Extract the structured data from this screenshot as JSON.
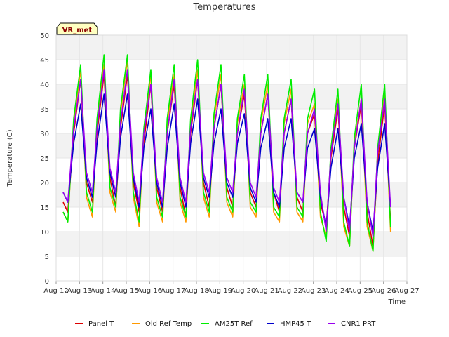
{
  "chart_data": {
    "type": "line",
    "title": "Temperatures",
    "xlabel": "Time",
    "ylabel": "Temperature (C)",
    "site_label": "VR_met",
    "xlim": [
      12,
      27
    ],
    "ylim": [
      0,
      50
    ],
    "yticks": [
      0,
      5,
      10,
      15,
      20,
      25,
      30,
      35,
      40,
      45,
      50
    ],
    "x_ticks": [
      {
        "x": 12,
        "label": "Aug 12"
      },
      {
        "x": 13,
        "label": "Aug 13"
      },
      {
        "x": 14,
        "label": "Aug 14"
      },
      {
        "x": 15,
        "label": "Aug 15"
      },
      {
        "x": 16,
        "label": "Aug 16"
      },
      {
        "x": 17,
        "label": "Aug 17"
      },
      {
        "x": 18,
        "label": "Aug 18"
      },
      {
        "x": 19,
        "label": "Aug 19"
      },
      {
        "x": 20,
        "label": "Aug 20"
      },
      {
        "x": 21,
        "label": "Aug 21"
      },
      {
        "x": 22,
        "label": "Aug 22"
      },
      {
        "x": 23,
        "label": "Aug 23"
      },
      {
        "x": 24,
        "label": "Aug 24"
      },
      {
        "x": 25,
        "label": "Aug 25"
      },
      {
        "x": 26,
        "label": "Aug 26"
      },
      {
        "x": 27,
        "label": "Aug 27"
      }
    ],
    "grid": true,
    "legend_position": "bottom",
    "series": [
      {
        "name": "Panel T",
        "color": "#dd0000",
        "x": [
          12.3,
          12.5,
          12.75,
          13.05,
          13.3,
          13.55,
          13.75,
          14.05,
          14.3,
          14.55,
          14.75,
          15.05,
          15.3,
          15.55,
          15.75,
          16.05,
          16.3,
          16.55,
          16.75,
          17.05,
          17.3,
          17.55,
          17.75,
          18.05,
          18.3,
          18.55,
          18.75,
          19.05,
          19.3,
          19.55,
          19.75,
          20.05,
          20.3,
          20.55,
          20.75,
          21.05,
          21.3,
          21.55,
          21.75,
          22.05,
          22.3,
          22.55,
          22.75,
          23.05,
          23.3,
          23.55,
          23.75,
          24.05,
          24.3,
          24.55,
          24.75,
          25.05,
          25.3,
          25.55,
          25.75,
          26.05,
          26.3
        ],
        "y": [
          16,
          14,
          30,
          41,
          20,
          16,
          30,
          42,
          21,
          15,
          31,
          42,
          20,
          14,
          28,
          40,
          19,
          14,
          30,
          40,
          19,
          13,
          30,
          41,
          20,
          15,
          31,
          40,
          19,
          15,
          30,
          38,
          18,
          15,
          30,
          38,
          18,
          14,
          30,
          37,
          17,
          14,
          30,
          34,
          16,
          11,
          25,
          35,
          15,
          9,
          27,
          36,
          14,
          7,
          24,
          36,
          12
        ]
      },
      {
        "name": "Old Ref Temp",
        "color": "#ff9900",
        "x": [
          12.3,
          12.5,
          12.75,
          13.05,
          13.3,
          13.55,
          13.75,
          14.05,
          14.3,
          14.55,
          14.75,
          15.05,
          15.3,
          15.55,
          15.75,
          16.05,
          16.3,
          16.55,
          16.75,
          17.05,
          17.3,
          17.55,
          17.75,
          18.05,
          18.3,
          18.55,
          18.75,
          19.05,
          19.3,
          19.55,
          19.75,
          20.05,
          20.3,
          20.55,
          20.75,
          21.05,
          21.3,
          21.55,
          21.75,
          22.05,
          22.3,
          22.55,
          22.75,
          23.05,
          23.3,
          23.55,
          23.75,
          24.05,
          24.3,
          24.55,
          24.75,
          25.05,
          25.3,
          25.55,
          25.75,
          26.05,
          26.3
        ],
        "y": [
          14,
          12,
          32,
          43,
          17,
          13,
          32,
          44,
          18,
          14,
          34,
          45,
          17,
          11,
          30,
          42,
          16,
          12,
          32,
          42,
          16,
          12,
          32,
          43,
          17,
          13,
          33,
          42,
          16,
          13,
          32,
          40,
          15,
          13,
          32,
          40,
          14,
          12,
          32,
          39,
          14,
          12,
          32,
          36,
          13,
          9,
          26,
          37,
          11,
          7,
          28,
          37,
          11,
          6,
          26,
          38,
          10
        ]
      },
      {
        "name": "AM25T Ref",
        "color": "#00ee00",
        "x": [
          12.3,
          12.5,
          12.75,
          13.05,
          13.3,
          13.55,
          13.75,
          14.05,
          14.3,
          14.55,
          14.75,
          15.05,
          15.3,
          15.55,
          15.75,
          16.05,
          16.3,
          16.55,
          16.75,
          17.05,
          17.3,
          17.55,
          17.75,
          18.05,
          18.3,
          18.55,
          18.75,
          19.05,
          19.3,
          19.55,
          19.75,
          20.05,
          20.3,
          20.55,
          20.75,
          21.05,
          21.3,
          21.55,
          21.75,
          22.05,
          22.3,
          22.55,
          22.75,
          23.05,
          23.3,
          23.55,
          23.75,
          24.05,
          24.3,
          24.55,
          24.75,
          25.05,
          25.3,
          25.55,
          25.75,
          26.05,
          26.3
        ],
        "y": [
          14,
          12,
          33,
          44,
          18,
          14,
          33,
          46,
          19,
          15,
          35,
          46,
          18,
          12,
          31,
          43,
          17,
          13,
          33,
          44,
          17,
          13,
          33,
          45,
          18,
          14,
          34,
          44,
          17,
          14,
          33,
          42,
          16,
          14,
          33,
          42,
          15,
          13,
          33,
          41,
          15,
          13,
          33,
          39,
          14,
          8,
          27,
          39,
          12,
          7,
          29,
          40,
          12,
          6,
          27,
          40,
          11
        ]
      },
      {
        "name": "HMP45 T",
        "color": "#0000cc",
        "x": [
          12.3,
          12.5,
          12.75,
          13.05,
          13.3,
          13.55,
          13.75,
          14.05,
          14.3,
          14.55,
          14.75,
          15.05,
          15.3,
          15.55,
          15.75,
          16.05,
          16.3,
          16.55,
          16.75,
          17.05,
          17.3,
          17.55,
          17.75,
          18.05,
          18.3,
          18.55,
          18.75,
          19.05,
          19.3,
          19.55,
          19.75,
          20.05,
          20.3,
          20.55,
          20.75,
          21.05,
          21.3,
          21.55,
          21.75,
          22.05,
          22.3,
          22.55,
          22.75,
          23.05,
          23.3,
          23.55,
          23.75,
          24.05,
          24.3,
          24.55,
          24.75,
          25.05,
          25.3,
          25.55,
          25.75,
          26.05,
          26.3
        ],
        "y": [
          18,
          16,
          28,
          36,
          21,
          17,
          28,
          38,
          22,
          17,
          29,
          38,
          21,
          15,
          27,
          35,
          20,
          15,
          27,
          36,
          20,
          15,
          28,
          37,
          21,
          17,
          28,
          35,
          20,
          17,
          28,
          34,
          19,
          16,
          27,
          33,
          18,
          15,
          27,
          33,
          18,
          16,
          27,
          31,
          17,
          11,
          23,
          31,
          17,
          11,
          25,
          32,
          16,
          10,
          23,
          32,
          15
        ]
      },
      {
        "name": "CNR1 PRT",
        "color": "#9900ee",
        "x": [
          12.3,
          12.5,
          12.75,
          13.05,
          13.3,
          13.55,
          13.75,
          14.05,
          14.3,
          14.55,
          14.75,
          15.05,
          15.3,
          15.55,
          15.75,
          16.05,
          16.3,
          16.55,
          16.75,
          17.05,
          17.3,
          17.55,
          17.75,
          18.05,
          18.3,
          18.55,
          18.75,
          19.05,
          19.3,
          19.55,
          19.75,
          20.05,
          20.3,
          20.55,
          20.75,
          21.05,
          21.3,
          21.55,
          21.75,
          22.05,
          22.3,
          22.55,
          22.75,
          23.05,
          23.3,
          23.55,
          23.75,
          24.05,
          24.3,
          24.55,
          24.75,
          25.05,
          25.3,
          25.55,
          25.75,
          26.05,
          26.3
        ],
        "y": [
          18,
          16,
          31,
          41,
          22,
          18,
          31,
          43,
          23,
          18,
          32,
          43,
          22,
          16,
          30,
          40,
          21,
          16,
          30,
          41,
          21,
          16,
          31,
          41,
          22,
          18,
          31,
          40,
          21,
          18,
          30,
          39,
          20,
          17,
          30,
          38,
          19,
          16,
          30,
          37,
          18,
          16,
          30,
          35,
          18,
          10,
          26,
          36,
          17,
          10,
          27,
          37,
          16,
          9,
          26,
          37,
          15
        ]
      }
    ]
  }
}
